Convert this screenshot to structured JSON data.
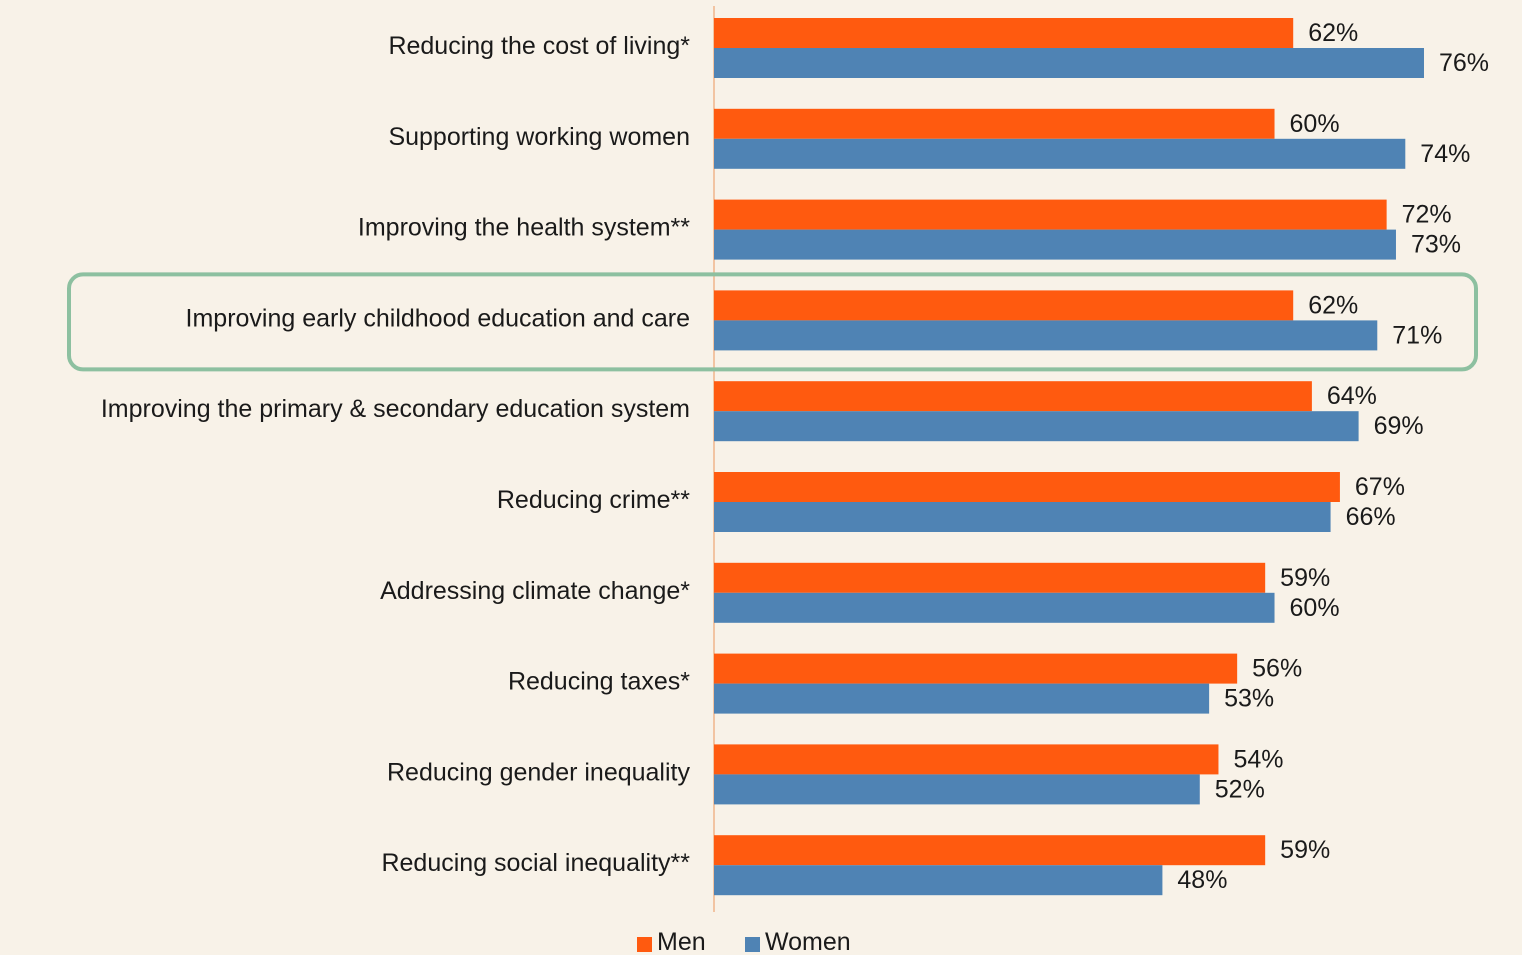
{
  "chart_data": {
    "type": "bar",
    "orientation": "horizontal",
    "categories": [
      "Reducing the cost of living*",
      "Supporting working women",
      "Improving the health system**",
      "Improving early childhood education and care",
      "Improving the primary & secondary education system",
      "Reducing crime**",
      "Addressing climate change*",
      "Reducing taxes*",
      "Reducing gender inequality",
      "Reducing social inequality**"
    ],
    "series": [
      {
        "name": "Men",
        "color": "#ff5a0f",
        "values": [
          62,
          60,
          72,
          62,
          64,
          67,
          59,
          56,
          54,
          59
        ]
      },
      {
        "name": "Women",
        "color": "#4f83b4",
        "values": [
          76,
          74,
          73,
          71,
          69,
          66,
          60,
          53,
          52,
          48
        ]
      }
    ],
    "value_suffix": "%",
    "xlim": [
      0,
      80
    ],
    "highlighted_category": "Improving early childhood education and care",
    "highlight_color": "#8dc0a0",
    "legend_position": "bottom",
    "grid": false
  }
}
